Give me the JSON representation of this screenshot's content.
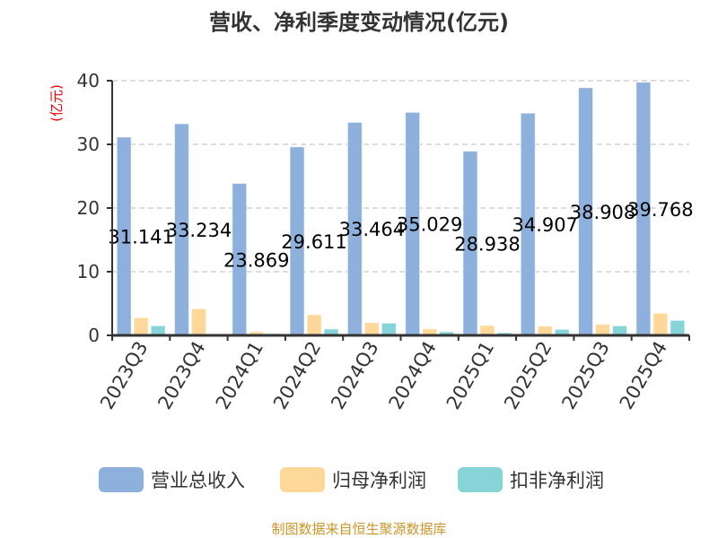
{
  "chart_data": {
    "type": "bar",
    "title": "营收、净利季度变动情况(亿元)",
    "ylabel": "(亿元)",
    "ylim": [
      0,
      40
    ],
    "yticks": [
      0,
      10,
      20,
      30,
      40
    ],
    "grid": true,
    "legend_position": "bottom",
    "categories": [
      "2023Q3",
      "2023Q4",
      "2024Q1",
      "2024Q2",
      "2024Q3",
      "2024Q4",
      "2025Q1",
      "2025Q2",
      "2025Q3",
      "2025Q4"
    ],
    "series": [
      {
        "name": "营业总收入",
        "color": "#8eb0dc",
        "values": [
          31.141,
          33.234,
          23.869,
          29.611,
          33.464,
          35.029,
          28.938,
          34.907,
          38.908,
          39.768
        ],
        "labels": [
          "31.141",
          "33.234",
          "23.869",
          "29.611",
          "33.464",
          "35.029",
          "28.938",
          "34.907",
          "38.908",
          "39.768"
        ]
      },
      {
        "name": "归母净利润",
        "color": "#fed898",
        "values": [
          2.78,
          4.18,
          0.56,
          3.24,
          2.0,
          1.03,
          1.55,
          1.45,
          1.74,
          3.48
        ]
      },
      {
        "name": "扣非净利润",
        "color": "#86d4d8",
        "values": [
          1.5,
          0.19,
          0.28,
          1.0,
          1.93,
          0.56,
          0.42,
          0.94,
          1.5,
          2.35
        ]
      }
    ]
  },
  "footer": "制图数据来自恒生聚源数据库"
}
